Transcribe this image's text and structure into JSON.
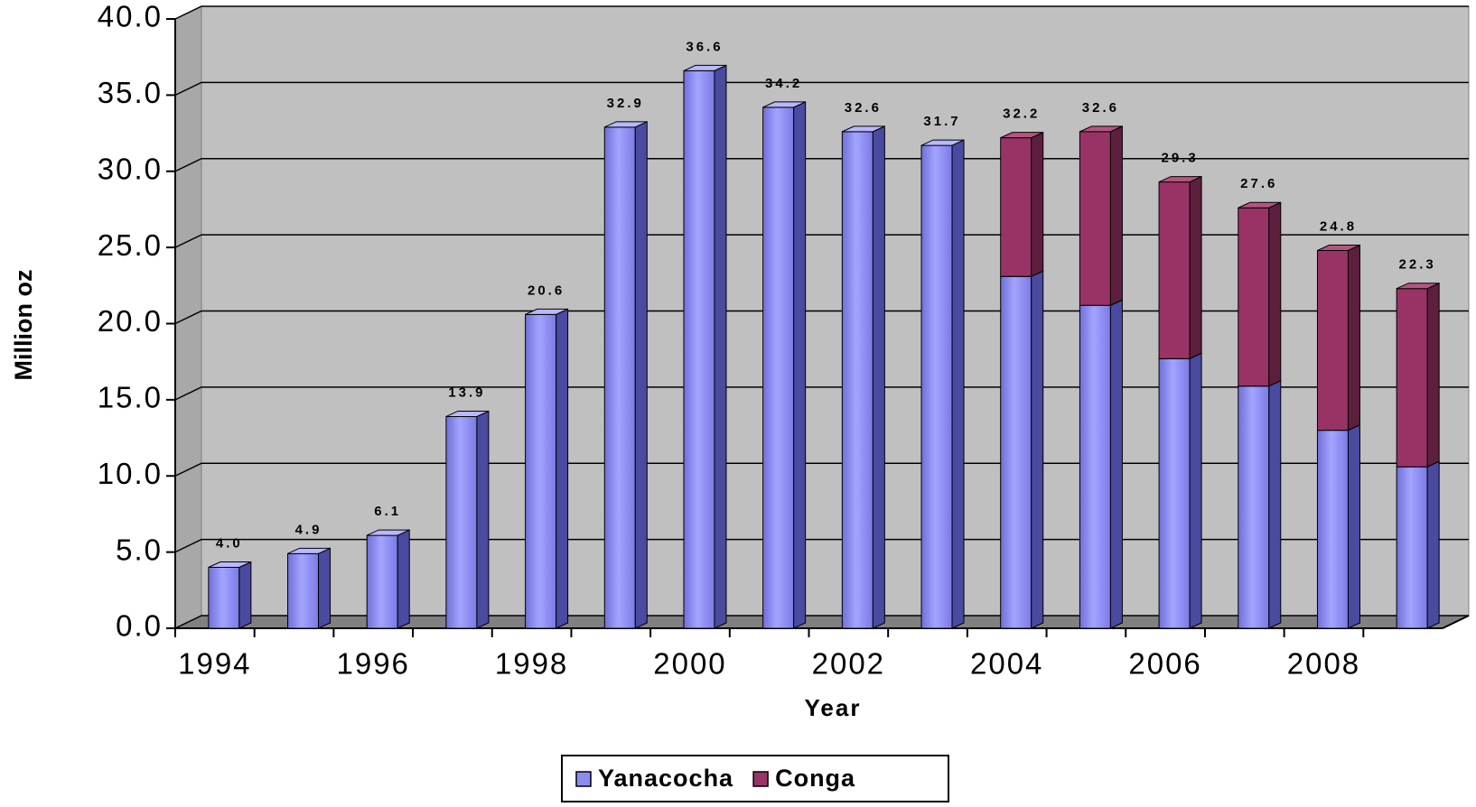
{
  "chart_data": {
    "type": "bar",
    "stacked": true,
    "x_label": "Year",
    "y_label": "Million oz",
    "categories": [
      "1994",
      null,
      "1996",
      null,
      "1998",
      null,
      "2000",
      null,
      "2002",
      null,
      "2004",
      null,
      "2006",
      null,
      "2008",
      null
    ],
    "series": [
      {
        "name": "Yanacocha",
        "color": "#8c8cf0",
        "values": [
          4.0,
          4.9,
          6.1,
          13.9,
          20.6,
          32.9,
          36.6,
          34.2,
          32.6,
          31.7,
          23.1,
          21.2,
          17.7,
          15.9,
          13.0,
          10.6
        ]
      },
      {
        "name": "Conga",
        "color": "#993366",
        "values": [
          null,
          null,
          null,
          null,
          null,
          null,
          null,
          null,
          null,
          null,
          9.1,
          11.4,
          11.6,
          11.7,
          11.8,
          11.7
        ]
      }
    ],
    "total_labels": [
      "4.0",
      "4.9",
      "6.1",
      "13.9",
      "20.6",
      "32.9",
      "36.6",
      "34.2",
      "32.6",
      "31.7",
      "32.2",
      "32.6",
      "29.3",
      "27.6",
      "24.8",
      "22.3"
    ],
    "ylim": [
      0,
      40
    ],
    "yticks": [
      {
        "value": 0,
        "label": "0.0"
      },
      {
        "value": 5,
        "label": "5.0"
      },
      {
        "value": 10,
        "label": "10.0"
      },
      {
        "value": 15,
        "label": "15.0"
      },
      {
        "value": 20,
        "label": "20.0"
      },
      {
        "value": 25,
        "label": "25.0"
      },
      {
        "value": 30,
        "label": "30.0"
      },
      {
        "value": 35,
        "label": "35.0"
      },
      {
        "value": 40,
        "label": "40.0"
      }
    ],
    "grid": true,
    "legend": "bottom"
  }
}
